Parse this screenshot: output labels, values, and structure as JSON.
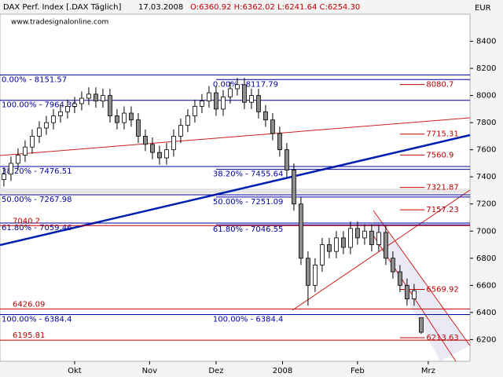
{
  "chart_data": {
    "type": "candlestick",
    "title": "DAX Perf. Index [.DAX Täglich]",
    "date": "17.03.2008",
    "ohlc": "O:6360.92 H:6362.02 L:6241.64 C:6254.30",
    "source": "www.tradesignalonline.com",
    "currency": "EUR",
    "up_color": "#ffffff",
    "down_color": "#8c8c8c",
    "level_color": "#0000a0",
    "label_color": "#c00000",
    "ylim": [
      6040,
      8600
    ],
    "yticks": [
      6200,
      6400,
      6600,
      6800,
      7000,
      7200,
      7400,
      7600,
      7800,
      8000,
      8200,
      8400
    ],
    "xlim": [
      -0.55,
      65.9
    ],
    "xticks": [
      {
        "value": 10,
        "label": "Okt"
      },
      {
        "value": 20.6,
        "label": "Nov"
      },
      {
        "value": 30,
        "label": "Dez"
      },
      {
        "value": 39.4,
        "label": "2008"
      },
      {
        "value": 50,
        "label": "Feb"
      },
      {
        "value": 60,
        "label": "Mrz"
      }
    ],
    "open": [
      7380,
      7420,
      7500,
      7560,
      7620,
      7700,
      7760,
      7800,
      7850,
      7880,
      7920,
      7940,
      7980,
      8010,
      7960,
      8000,
      7850,
      7800,
      7870,
      7820,
      7700,
      7640,
      7580,
      7540,
      7600,
      7700,
      7780,
      7850,
      7920,
      7960,
      8020,
      7900,
      7990,
      8050,
      8080,
      7950,
      8000,
      7880,
      7820,
      7720,
      7600,
      7450,
      7200,
      6800,
      6600,
      6750,
      6900,
      6850,
      6950,
      6880,
      7020,
      6950,
      7000,
      6900,
      6990,
      6800,
      6700,
      6600,
      6500,
      6360.92
    ],
    "high": [
      7470,
      7550,
      7610,
      7670,
      7750,
      7810,
      7850,
      7900,
      7930,
      7970,
      7990,
      8030,
      8060,
      8060,
      8050,
      8050,
      7900,
      7920,
      7920,
      7870,
      7750,
      7690,
      7630,
      7650,
      7750,
      7830,
      7900,
      7970,
      8010,
      8070,
      8070,
      8040,
      8100,
      8130,
      8130,
      8050,
      8050,
      7930,
      7870,
      7770,
      7650,
      7500,
      7250,
      6850,
      6800,
      6950,
      6950,
      7000,
      7000,
      7070,
      7070,
      7050,
      7050,
      7040,
      7040,
      6850,
      6750,
      6650,
      6610,
      6362.02
    ],
    "low": [
      7330,
      7370,
      7450,
      7510,
      7570,
      7650,
      7710,
      7750,
      7800,
      7830,
      7870,
      7890,
      7930,
      7910,
      7910,
      7800,
      7750,
      7750,
      7770,
      7650,
      7590,
      7530,
      7490,
      7490,
      7550,
      7650,
      7730,
      7800,
      7870,
      7910,
      7850,
      7850,
      7940,
      8000,
      7900,
      7900,
      7830,
      7770,
      7670,
      7550,
      7400,
      7150,
      6750,
      6450,
      6550,
      6700,
      6800,
      6800,
      6830,
      6830,
      6900,
      6900,
      6850,
      6850,
      6750,
      6650,
      6550,
      6450,
      6450,
      6241.64
    ],
    "close": [
      7420,
      7500,
      7560,
      7620,
      7700,
      7760,
      7800,
      7850,
      7880,
      7920,
      7940,
      7980,
      8010,
      7960,
      8000,
      7850,
      7800,
      7870,
      7820,
      7700,
      7640,
      7580,
      7540,
      7600,
      7700,
      7780,
      7850,
      7920,
      7960,
      8020,
      7900,
      7990,
      8050,
      8080,
      7950,
      8000,
      7880,
      7820,
      7720,
      7600,
      7450,
      7200,
      6800,
      6600,
      6750,
      6900,
      6850,
      6950,
      6880,
      7020,
      6950,
      7000,
      6900,
      6990,
      6800,
      6700,
      6600,
      6500,
      6560,
      6254.3
    ],
    "fib_left": [
      {
        "label": "0.00% - 8151.57",
        "value": 8151.57
      },
      {
        "label": "100.00% - 7964.36",
        "value": 7964.36
      },
      {
        "label": "38.20% - 7476.51",
        "value": 7476.51
      },
      {
        "label": "50.00% - 7267.98",
        "value": 7267.98
      },
      {
        "label": "61.80% - 7059.46",
        "value": 7059.46
      },
      {
        "label": "100.00% - 6384.4",
        "value": 6384.4
      }
    ],
    "fib_right": [
      {
        "label": "0.00% - 8117.79",
        "value": 8117.79
      },
      {
        "label": "38.20% - 7455.64",
        "value": 7455.64
      },
      {
        "label": "50.00% - 7251.09",
        "value": 7251.09
      },
      {
        "label": "61.80% - 7046.55",
        "value": 7046.55
      },
      {
        "label": "100.00% - 6384.4",
        "value": 6384.4
      }
    ],
    "left_labels": [
      7040.2,
      6426.09,
      6195.81
    ],
    "right_labels": [
      8080.7,
      7715.31,
      7560.9,
      7321.87,
      7157.23,
      6569.92,
      6213.63
    ]
  }
}
